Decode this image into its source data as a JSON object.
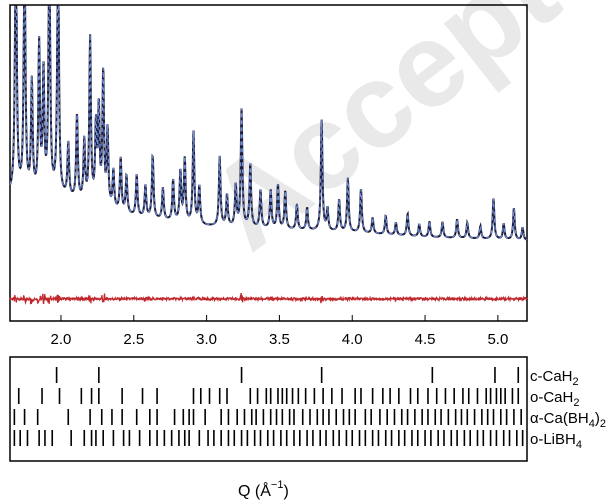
{
  "watermark": "Accepted Ma",
  "chart_data": {
    "type": "line",
    "title": "",
    "xlabel_main": "Q (Å",
    "xlabel_sup": "−1",
    "xlabel_close": ")",
    "ylabel": "",
    "xlim": [
      1.65,
      5.2
    ],
    "ylim": [
      0,
      1
    ],
    "grid": false,
    "x_ticks": [
      2.0,
      2.5,
      3.0,
      3.5,
      4.0,
      4.5,
      5.0
    ],
    "x_tick_labels": [
      "2.0",
      "2.5",
      "3.0",
      "3.5",
      "4.0",
      "4.5",
      "5.0"
    ],
    "baseline_level": 0.19,
    "diff_level": 0.07,
    "background": [
      [
        1.65,
        0.4
      ],
      [
        2.0,
        0.39
      ],
      [
        2.5,
        0.33
      ],
      [
        3.0,
        0.3
      ],
      [
        3.5,
        0.29
      ],
      [
        4.0,
        0.28
      ],
      [
        4.5,
        0.265
      ],
      [
        5.2,
        0.255
      ]
    ],
    "peaks": [
      {
        "x": 1.69,
        "h": 0.96
      },
      {
        "x": 1.75,
        "h": 0.83
      },
      {
        "x": 1.8,
        "h": 0.35
      },
      {
        "x": 1.85,
        "h": 0.47
      },
      {
        "x": 1.88,
        "h": 0.38
      },
      {
        "x": 1.92,
        "h": 0.86
      },
      {
        "x": 1.98,
        "h": 0.86
      },
      {
        "x": 2.05,
        "h": 0.17
      },
      {
        "x": 2.11,
        "h": 0.27
      },
      {
        "x": 2.16,
        "h": 0.19
      },
      {
        "x": 2.2,
        "h": 0.52
      },
      {
        "x": 2.24,
        "h": 0.24
      },
      {
        "x": 2.26,
        "h": 0.3
      },
      {
        "x": 2.29,
        "h": 0.42
      },
      {
        "x": 2.32,
        "h": 0.24
      },
      {
        "x": 2.36,
        "h": 0.12
      },
      {
        "x": 2.41,
        "h": 0.17
      },
      {
        "x": 2.45,
        "h": 0.12
      },
      {
        "x": 2.52,
        "h": 0.13
      },
      {
        "x": 2.58,
        "h": 0.1
      },
      {
        "x": 2.63,
        "h": 0.2
      },
      {
        "x": 2.7,
        "h": 0.1
      },
      {
        "x": 2.77,
        "h": 0.13
      },
      {
        "x": 2.82,
        "h": 0.16
      },
      {
        "x": 2.85,
        "h": 0.2
      },
      {
        "x": 2.91,
        "h": 0.29
      },
      {
        "x": 2.95,
        "h": 0.12
      },
      {
        "x": 3.09,
        "h": 0.22
      },
      {
        "x": 3.14,
        "h": 0.1
      },
      {
        "x": 3.2,
        "h": 0.13
      },
      {
        "x": 3.24,
        "h": 0.37
      },
      {
        "x": 3.3,
        "h": 0.2
      },
      {
        "x": 3.37,
        "h": 0.12
      },
      {
        "x": 3.44,
        "h": 0.12
      },
      {
        "x": 3.49,
        "h": 0.14
      },
      {
        "x": 3.54,
        "h": 0.12
      },
      {
        "x": 3.62,
        "h": 0.08
      },
      {
        "x": 3.69,
        "h": 0.07
      },
      {
        "x": 3.79,
        "h": 0.35
      },
      {
        "x": 3.83,
        "h": 0.07
      },
      {
        "x": 3.91,
        "h": 0.1
      },
      {
        "x": 3.97,
        "h": 0.17
      },
      {
        "x": 4.06,
        "h": 0.14
      },
      {
        "x": 4.14,
        "h": 0.05
      },
      {
        "x": 4.23,
        "h": 0.06
      },
      {
        "x": 4.3,
        "h": 0.04
      },
      {
        "x": 4.38,
        "h": 0.07
      },
      {
        "x": 4.46,
        "h": 0.04
      },
      {
        "x": 4.53,
        "h": 0.05
      },
      {
        "x": 4.62,
        "h": 0.05
      },
      {
        "x": 4.72,
        "h": 0.06
      },
      {
        "x": 4.79,
        "h": 0.05
      },
      {
        "x": 4.88,
        "h": 0.04
      },
      {
        "x": 4.97,
        "h": 0.13
      },
      {
        "x": 5.04,
        "h": 0.05
      },
      {
        "x": 5.11,
        "h": 0.1
      },
      {
        "x": 5.17,
        "h": 0.04
      }
    ],
    "series": [
      {
        "name": "",
        "style": "observed",
        "color": "#1b1b3a"
      },
      {
        "name": "",
        "style": "calculated",
        "color": "#6f8fd8"
      },
      {
        "name": "",
        "style": "difference",
        "color": "#c0282d"
      }
    ],
    "phases": [
      {
        "label_main": "c-CaH",
        "label_sub": "2",
        "label_tail": "",
        "positions": [
          1.97,
          2.26,
          3.24,
          3.79,
          4.55,
          4.98,
          5.14
        ]
      },
      {
        "label_main": "o-CaH",
        "label_sub": "2",
        "label_tail": "",
        "positions": [
          1.71,
          1.87,
          1.99,
          2.14,
          2.21,
          2.26,
          2.42,
          2.56,
          2.66,
          2.91,
          2.96,
          3.02,
          3.09,
          3.14,
          3.3,
          3.35,
          3.41,
          3.44,
          3.49,
          3.52,
          3.55,
          3.59,
          3.63,
          3.68,
          3.74,
          3.8,
          3.86,
          3.93,
          4.02,
          4.06,
          4.14,
          4.21,
          4.26,
          4.32,
          4.4,
          4.45,
          4.52,
          4.58,
          4.64,
          4.7,
          4.76,
          4.8,
          4.86,
          4.92,
          4.95,
          4.99,
          5.02,
          5.05,
          5.1,
          5.14
        ]
      },
      {
        "label_main": "α-Ca(BH",
        "label_sub": "4",
        "label_tail": ")2",
        "positions": [
          1.68,
          1.75,
          1.84,
          2.05,
          2.2,
          2.28,
          2.35,
          2.42,
          2.52,
          2.61,
          2.66,
          2.78,
          2.84,
          2.88,
          2.91,
          2.99,
          3.1,
          3.15,
          3.21,
          3.26,
          3.31,
          3.34,
          3.39,
          3.44,
          3.48,
          3.52,
          3.57,
          3.6,
          3.66,
          3.71,
          3.76,
          3.8,
          3.84,
          3.89,
          3.94,
          3.98,
          4.02,
          4.09,
          4.13,
          4.19,
          4.24,
          4.29,
          4.34,
          4.38,
          4.43,
          4.48,
          4.52,
          4.57,
          4.61,
          4.66,
          4.71,
          4.75,
          4.79,
          4.84,
          4.89,
          4.93,
          4.97,
          5.02,
          5.06,
          5.11,
          5.16
        ]
      },
      {
        "label_main": "o-LiBH",
        "label_sub": "4",
        "label_tail": "",
        "positions": [
          1.68,
          1.72,
          1.77,
          1.85,
          1.89,
          1.94,
          2.07,
          2.16,
          2.21,
          2.24,
          2.29,
          2.36,
          2.43,
          2.47,
          2.54,
          2.61,
          2.66,
          2.71,
          2.76,
          2.81,
          2.85,
          2.88,
          2.95,
          3.01,
          3.05,
          3.1,
          3.15,
          3.19,
          3.24,
          3.28,
          3.33,
          3.37,
          3.42,
          3.46,
          3.51,
          3.55,
          3.6,
          3.64,
          3.69,
          3.73,
          3.78,
          3.82,
          3.87,
          3.91,
          3.96,
          4.0,
          4.05,
          4.09,
          4.14,
          4.18,
          4.23,
          4.27,
          4.32,
          4.36,
          4.41,
          4.45,
          4.5,
          4.54,
          4.59,
          4.63,
          4.68,
          4.72,
          4.77,
          4.81,
          4.86,
          4.9,
          4.95,
          4.99,
          5.04,
          5.08,
          5.13,
          5.17
        ]
      }
    ]
  }
}
